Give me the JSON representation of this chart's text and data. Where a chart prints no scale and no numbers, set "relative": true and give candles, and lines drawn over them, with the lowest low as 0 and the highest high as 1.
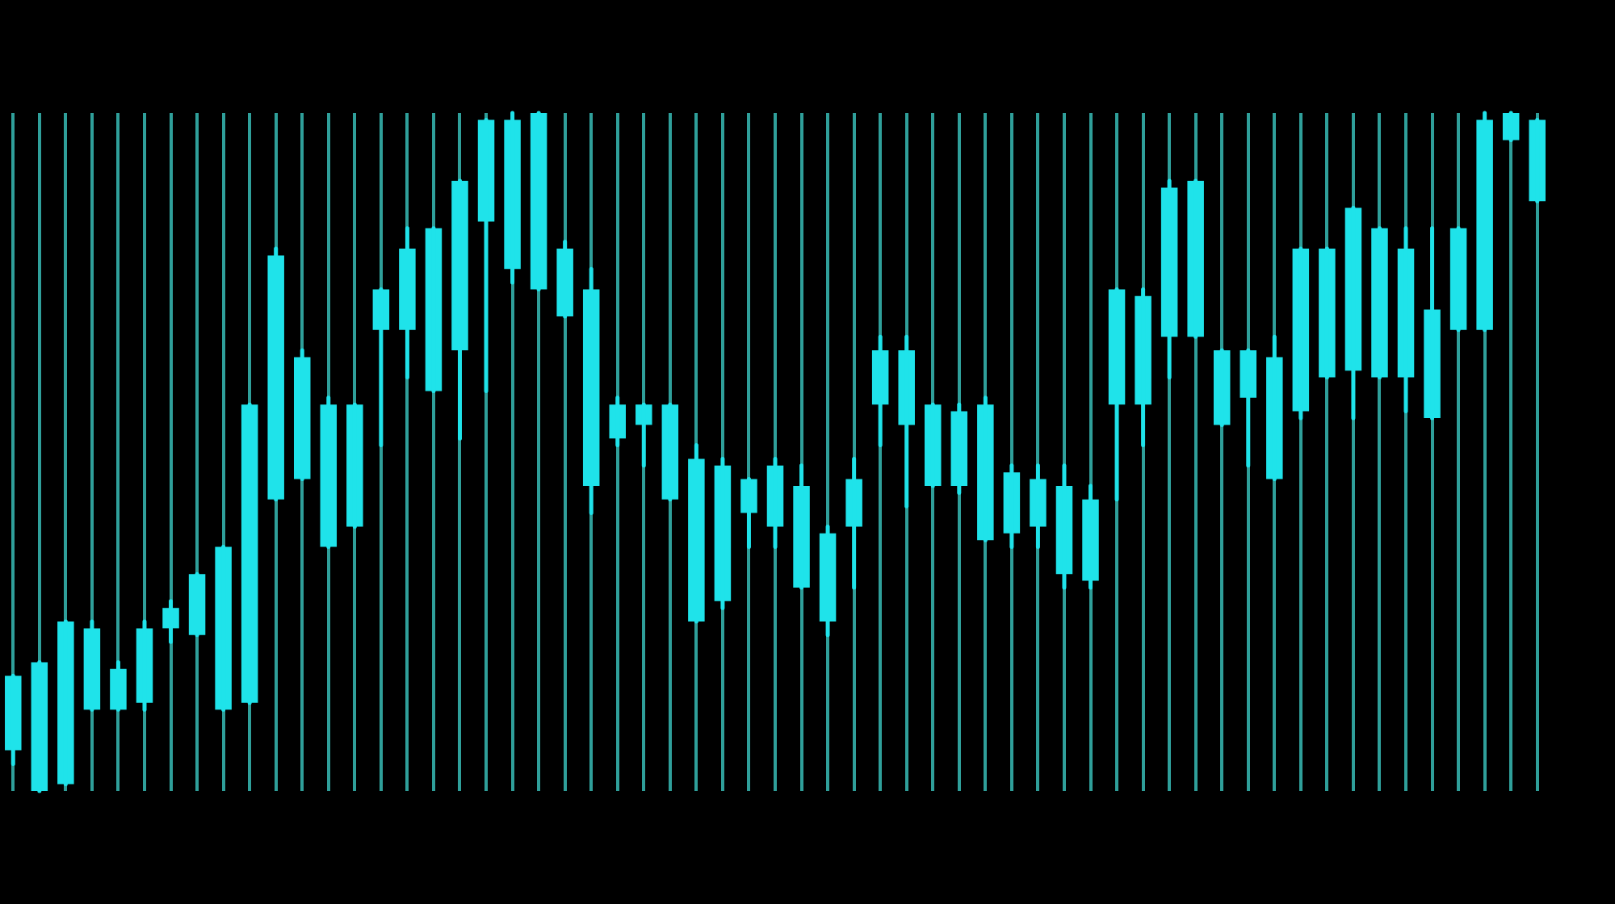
{
  "chart_data": {
    "type": "candlestick",
    "relative": true,
    "grid": "x",
    "color": "#1fe3ea",
    "categories": [
      null,
      null,
      null,
      null,
      null,
      null,
      null,
      null,
      null,
      null,
      null,
      null,
      null,
      null,
      null,
      null,
      null,
      null,
      null,
      null,
      null,
      null,
      null,
      null,
      null,
      null,
      null,
      null,
      null,
      null,
      null,
      null,
      null,
      null,
      null,
      null,
      null,
      null,
      null,
      null,
      null,
      null,
      null,
      null,
      null,
      null,
      null,
      null,
      null,
      null,
      null,
      null,
      null,
      null,
      null,
      null,
      null,
      null,
      null
    ],
    "ohlc": [
      [
        0.06,
        0.17,
        0.04,
        0.17
      ],
      [
        0,
        0.19,
        0,
        0.19
      ],
      [
        0.01,
        0.25,
        0.01,
        0.25
      ],
      [
        0.12,
        0.25,
        0.12,
        0.24
      ],
      [
        0.12,
        0.19,
        0.12,
        0.18
      ],
      [
        0.13,
        0.25,
        0.12,
        0.24
      ],
      [
        0.24,
        0.28,
        0.22,
        0.27
      ],
      [
        0.23,
        0.32,
        0.23,
        0.32
      ],
      [
        0.12,
        0.36,
        0.12,
        0.36
      ],
      [
        0.13,
        0.57,
        0.13,
        0.57
      ],
      [
        0.43,
        0.8,
        0.43,
        0.79
      ],
      [
        0.46,
        0.65,
        0.46,
        0.64
      ],
      [
        0.36,
        0.58,
        0.36,
        0.57
      ],
      [
        0.39,
        0.57,
        0.39,
        0.57
      ],
      [
        0.68,
        0.74,
        0.51,
        0.74
      ],
      [
        0.68,
        0.83,
        0.61,
        0.8
      ],
      [
        0.59,
        0.83,
        0.59,
        0.83
      ],
      [
        0.65,
        0.9,
        0.52,
        0.9
      ],
      [
        0.84,
        0.99,
        0.59,
        0.99
      ],
      [
        0.77,
        1.0,
        0.75,
        0.99
      ],
      [
        0.74,
        1.0,
        0.74,
        1.0
      ],
      [
        0.7,
        0.81,
        0.7,
        0.8
      ],
      [
        0.45,
        0.77,
        0.41,
        0.74
      ],
      [
        0.52,
        0.58,
        0.51,
        0.57
      ],
      [
        0.54,
        0.57,
        0.48,
        0.57
      ],
      [
        0.43,
        0.57,
        0.43,
        0.57
      ],
      [
        0.25,
        0.51,
        0.25,
        0.49
      ],
      [
        0.28,
        0.49,
        0.27,
        0.48
      ],
      [
        0.41,
        0.46,
        0.36,
        0.46
      ],
      [
        0.39,
        0.49,
        0.36,
        0.48
      ],
      [
        0.3,
        0.48,
        0.3,
        0.45
      ],
      [
        0.25,
        0.39,
        0.23,
        0.38
      ],
      [
        0.39,
        0.49,
        0.3,
        0.46
      ],
      [
        0.57,
        0.67,
        0.51,
        0.65
      ],
      [
        0.54,
        0.67,
        0.42,
        0.65
      ],
      [
        0.45,
        0.57,
        0.45,
        0.57
      ],
      [
        0.45,
        0.57,
        0.44,
        0.56
      ],
      [
        0.37,
        0.58,
        0.37,
        0.57
      ],
      [
        0.38,
        0.48,
        0.36,
        0.47
      ],
      [
        0.39,
        0.48,
        0.36,
        0.46
      ],
      [
        0.32,
        0.48,
        0.3,
        0.45
      ],
      [
        0.31,
        0.45,
        0.3,
        0.43
      ],
      [
        0.57,
        0.74,
        0.43,
        0.74
      ],
      [
        0.57,
        0.74,
        0.51,
        0.73
      ],
      [
        0.67,
        0.9,
        0.61,
        0.89
      ],
      [
        0.67,
        0.9,
        0.67,
        0.9
      ],
      [
        0.54,
        0.65,
        0.54,
        0.65
      ],
      [
        0.58,
        0.65,
        0.48,
        0.65
      ],
      [
        0.46,
        0.67,
        0.46,
        0.64
      ],
      [
        0.56,
        0.8,
        0.55,
        0.8
      ],
      [
        0.61,
        0.8,
        0.61,
        0.8
      ],
      [
        0.62,
        0.86,
        0.55,
        0.86
      ],
      [
        0.61,
        0.83,
        0.61,
        0.83
      ],
      [
        0.61,
        0.83,
        0.56,
        0.8
      ],
      [
        0.55,
        0.83,
        0.55,
        0.71
      ],
      [
        0.68,
        0.83,
        0.68,
        0.83
      ],
      [
        0.68,
        1.0,
        0.68,
        0.99
      ],
      [
        0.96,
        1.0,
        0.96,
        1.0
      ],
      [
        0.87,
        0.99,
        0.87,
        0.99
      ]
    ]
  }
}
